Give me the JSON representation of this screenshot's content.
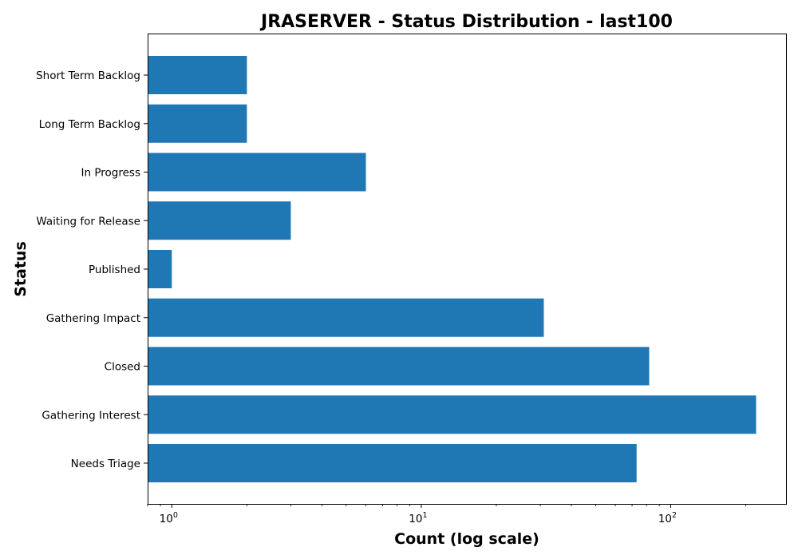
{
  "chart_data": {
    "type": "bar",
    "orientation": "horizontal",
    "title": "JRASERVER - Status Distribution - last100",
    "xlabel": "Count (log scale)",
    "ylabel": "Status",
    "xscale": "log",
    "xlim": [
      0.8,
      290
    ],
    "xticks": [
      {
        "value": 1,
        "base": "10",
        "exp": "0"
      },
      {
        "value": 10,
        "base": "10",
        "exp": "1"
      },
      {
        "value": 100,
        "base": "10",
        "exp": "2"
      }
    ],
    "categories": [
      "Short Term Backlog",
      "Long Term Backlog",
      "In Progress",
      "Waiting for Release",
      "Published",
      "Gathering Impact",
      "Closed",
      "Gathering Interest",
      "Needs Triage"
    ],
    "values": [
      2,
      2,
      6,
      3,
      1,
      31,
      82,
      220,
      73
    ],
    "bar_color": "#1f77b4",
    "grid": false,
    "legend": "none"
  }
}
